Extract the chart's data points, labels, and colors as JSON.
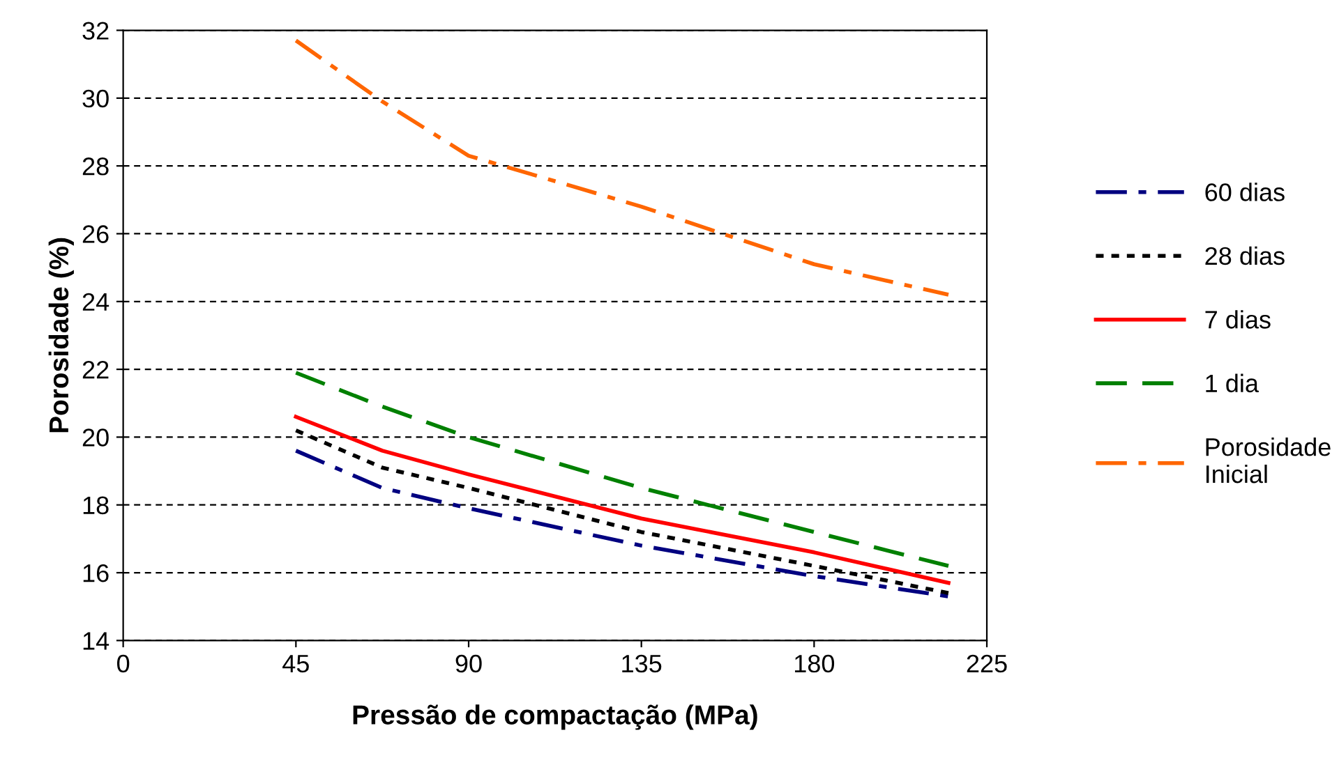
{
  "chart_data": {
    "type": "line",
    "xlabel": "Pressão de compactação (MPa)",
    "ylabel": "Porosidade (%)",
    "xlim": [
      0,
      225
    ],
    "xticks": [
      0,
      45,
      90,
      135,
      180,
      225
    ],
    "ylim": [
      14,
      32
    ],
    "yticks": [
      14,
      16,
      18,
      20,
      22,
      24,
      26,
      28,
      30,
      32
    ],
    "grid": "y",
    "legend": "right",
    "marker": "none",
    "x": [
      45,
      67.5,
      90,
      135,
      180,
      215
    ],
    "series": [
      {
        "name": "60 dias",
        "color": "#000080",
        "line_style": "dashdot",
        "values": [
          19.6,
          18.5,
          17.9,
          16.8,
          15.9,
          15.3
        ]
      },
      {
        "name": "28 dias",
        "color": "#000000",
        "line_style": "dotted",
        "values": [
          20.2,
          19.1,
          18.5,
          17.2,
          16.2,
          15.4
        ]
      },
      {
        "name": "7 dias",
        "color": "#ff0000",
        "line_style": "solid",
        "values": [
          20.6,
          19.6,
          18.9,
          17.6,
          16.6,
          15.7
        ]
      },
      {
        "name": "1 dia",
        "color": "#008000",
        "line_style": "dashed",
        "values": [
          21.9,
          20.9,
          20.0,
          18.5,
          17.2,
          16.2
        ]
      },
      {
        "name": "Porosidade\nInicial",
        "color": "#ff6600",
        "line_style": "dashdot",
        "values": [
          31.7,
          29.9,
          28.3,
          26.8,
          25.1,
          24.2
        ]
      }
    ]
  }
}
